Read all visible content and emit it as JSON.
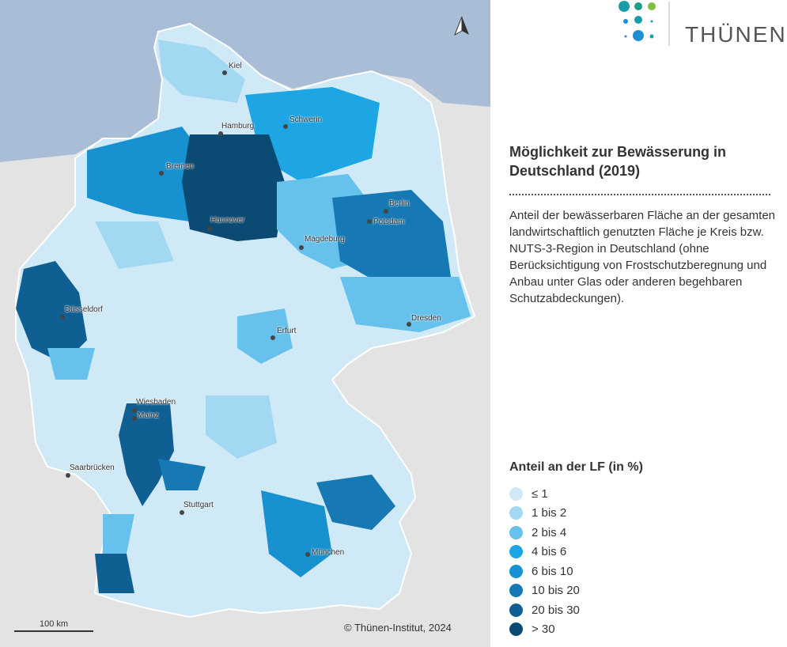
{
  "map": {
    "cities": [
      "Kiel",
      "Hamburg",
      "Schwerin",
      "Bremen",
      "Berlin",
      "Potsdam",
      "Hannover",
      "Magdeburg",
      "Düsseldorf",
      "Erfurt",
      "Dresden",
      "Wiesbaden",
      "Mainz",
      "Saarbrücken",
      "Stuttgart",
      "München"
    ],
    "scale_label": "100 km",
    "copyright": "© Thünen-Institut, 2024",
    "north_icon": "north-arrow-icon"
  },
  "logo": {
    "text": "THÜNEN"
  },
  "title": "Möglichkeit zur Bewässerung in Deutschland (2019)",
  "description": "Anteil der bewässerbaren Fläche an der gesamten landwirtschaftlich genutzten Fläche je Kreis bzw. NUTS-3-Region in Deutschland (ohne Berücksichtigung von Frostschutzberegnung und Anbau unter Glas oder anderen begehbaren Schutzabdeckungen).",
  "legend": {
    "title": "Anteil an der LF (in %)",
    "items": [
      {
        "label": "≤ 1",
        "color": "#cfe9f7"
      },
      {
        "label": "1 bis 2",
        "color": "#a3d8f2"
      },
      {
        "label": "2 bis 4",
        "color": "#66c1ec"
      },
      {
        "label": "4 bis 6",
        "color": "#1ea6e4"
      },
      {
        "label": "6 bis 10",
        "color": "#1891d0"
      },
      {
        "label": "10 bis 20",
        "color": "#1679b3"
      },
      {
        "label": "20 bis 30",
        "color": "#105f92"
      },
      {
        "label": "> 30",
        "color": "#0b4a73"
      }
    ]
  }
}
